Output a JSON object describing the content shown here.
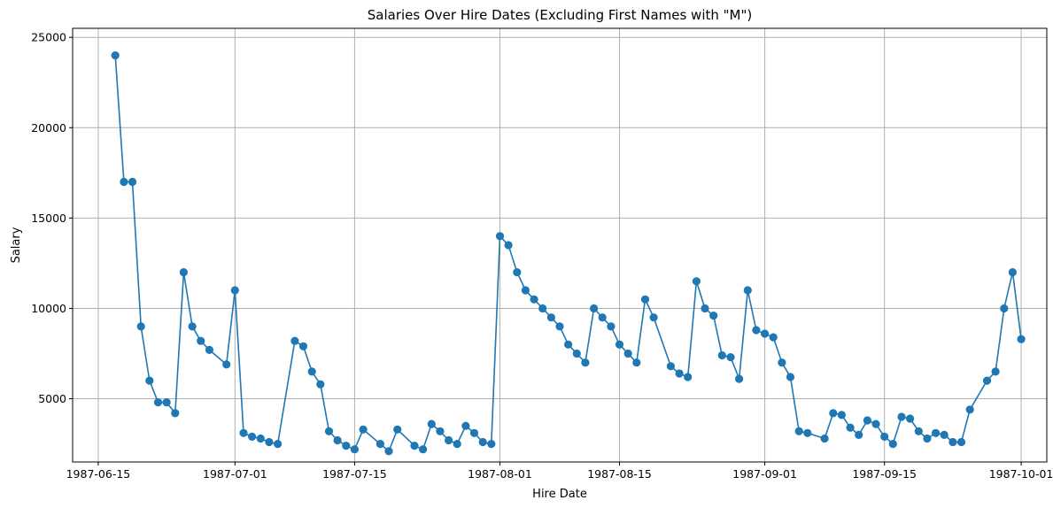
{
  "chart_data": {
    "type": "line",
    "title": "Salaries Over Hire Dates (Excluding First Names with \"M\")",
    "xlabel": "Hire Date",
    "ylabel": "Salary",
    "x_range": [
      "1987-06-12",
      "1987-10-04"
    ],
    "ylim": [
      1500,
      25500
    ],
    "x_ticks": [
      "1987-06-15",
      "1987-07-01",
      "1987-07-15",
      "1987-08-01",
      "1987-08-15",
      "1987-09-01",
      "1987-09-15",
      "1987-10-01"
    ],
    "y_ticks": [
      5000,
      10000,
      15000,
      20000,
      25000
    ],
    "grid": true,
    "marker": "circle",
    "color": "#1f77b4",
    "series": [
      {
        "x": [
          "1987-06-17",
          "1987-06-18",
          "1987-06-19",
          "1987-06-20",
          "1987-06-21",
          "1987-06-22",
          "1987-06-23",
          "1987-06-24",
          "1987-06-25",
          "1987-06-26",
          "1987-06-27",
          "1987-06-28",
          "1987-06-30",
          "1987-07-01",
          "1987-07-02",
          "1987-07-03",
          "1987-07-04",
          "1987-07-05",
          "1987-07-06",
          "1987-07-08",
          "1987-07-09",
          "1987-07-10",
          "1987-07-11",
          "1987-07-12",
          "1987-07-13",
          "1987-07-14",
          "1987-07-15",
          "1987-07-16",
          "1987-07-18",
          "1987-07-19",
          "1987-07-20",
          "1987-07-22",
          "1987-07-23",
          "1987-07-24",
          "1987-07-25",
          "1987-07-26",
          "1987-07-27",
          "1987-07-28",
          "1987-07-29",
          "1987-07-30",
          "1987-07-31",
          "1987-08-01",
          "1987-08-02",
          "1987-08-03",
          "1987-08-04",
          "1987-08-05",
          "1987-08-06",
          "1987-08-07",
          "1987-08-08",
          "1987-08-09",
          "1987-08-10",
          "1987-08-11",
          "1987-08-12",
          "1987-08-13",
          "1987-08-14",
          "1987-08-15",
          "1987-08-16",
          "1987-08-17",
          "1987-08-18",
          "1987-08-19",
          "1987-08-21",
          "1987-08-22",
          "1987-08-23",
          "1987-08-24",
          "1987-08-25",
          "1987-08-26",
          "1987-08-27",
          "1987-08-28",
          "1987-08-29",
          "1987-08-30",
          "1987-08-31",
          "1987-09-01",
          "1987-09-02",
          "1987-09-03",
          "1987-09-04",
          "1987-09-05",
          "1987-09-06",
          "1987-09-08",
          "1987-09-09",
          "1987-09-10",
          "1987-09-11",
          "1987-09-12",
          "1987-09-13",
          "1987-09-14",
          "1987-09-15",
          "1987-09-16",
          "1987-09-17",
          "1987-09-18",
          "1987-09-19",
          "1987-09-20",
          "1987-09-21",
          "1987-09-22",
          "1987-09-23",
          "1987-09-24",
          "1987-09-25",
          "1987-09-27",
          "1987-09-28",
          "1987-09-29",
          "1987-09-30",
          "1987-10-01"
        ],
        "y": [
          24000,
          17000,
          17000,
          9000,
          6000,
          4800,
          4800,
          4200,
          12000,
          9000,
          8200,
          7700,
          6900,
          11000,
          3100,
          2900,
          2800,
          2600,
          2500,
          8200,
          7900,
          6500,
          5800,
          3200,
          2700,
          2400,
          2200,
          3300,
          2500,
          2100,
          3300,
          2400,
          2200,
          3600,
          3200,
          2700,
          2500,
          3500,
          3100,
          2600,
          2500,
          14000,
          13500,
          12000,
          11000,
          10500,
          10000,
          9500,
          9000,
          8000,
          7500,
          7000,
          10000,
          9500,
          9000,
          8000,
          7500,
          7000,
          10500,
          9500,
          6800,
          6400,
          6200,
          11500,
          10000,
          9600,
          7400,
          7300,
          6100,
          11000,
          8800,
          8600,
          8400,
          7000,
          6200,
          3200,
          3100,
          2800,
          4200,
          4100,
          3400,
          3000,
          3800,
          3600,
          2900,
          2500,
          4000,
          3900,
          3200,
          2800,
          3100,
          3000,
          2600,
          2600,
          4400,
          6000,
          6500,
          10000,
          12000,
          8300
        ]
      }
    ]
  }
}
